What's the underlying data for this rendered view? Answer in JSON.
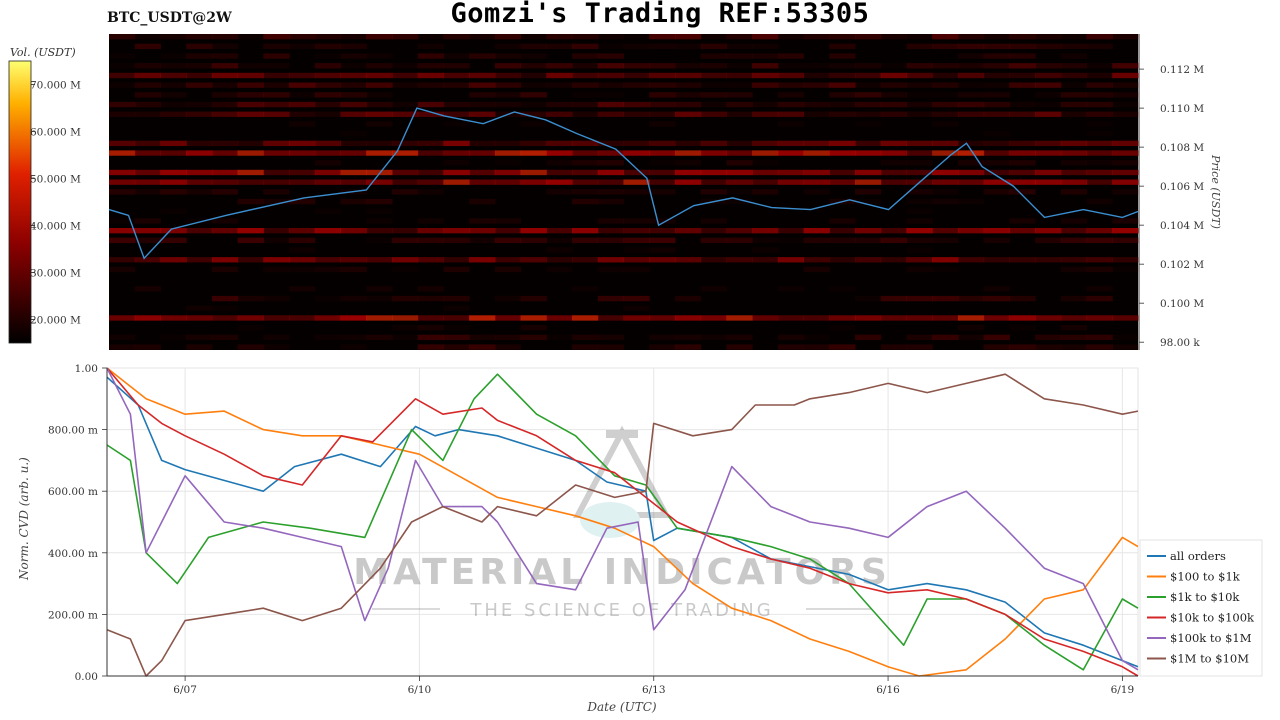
{
  "header": {
    "pair": "BTC_USDT@2W",
    "title": "Gomzi's Trading REF:53305"
  },
  "heatmap": {
    "colorbar_label": "Vol. (USDT)",
    "colorbar_ticks": [
      "70.000 M",
      "60.000 M",
      "50.000 M",
      "40.000 M",
      "30.000 M",
      "20.000 M"
    ],
    "y_axis_label": "Price (USDT)",
    "price_ticks": [
      "0.112 M",
      "0.110 M",
      "0.108 M",
      "0.106 M",
      "0.104 M",
      "0.102 M",
      "0.100 M",
      "98.00 k"
    ],
    "price_line_color": "#3a8fd1"
  },
  "watermark": {
    "line1": "MATERIAL INDICATORS",
    "line2": "THE SCIENCE OF TRADING"
  },
  "chart_data": [
    {
      "type": "heatmap",
      "series": [
        {
          "name": "",
          "x": [
            6.0,
            6.25,
            6.45,
            6.8,
            7.5,
            8.5,
            9.3,
            9.7,
            9.95,
            10.3,
            10.8,
            11.2,
            11.6,
            12.0,
            12.5,
            12.9,
            13.05,
            13.5,
            14.0,
            14.5,
            15.0,
            15.5,
            16.0,
            16.4,
            16.8,
            17.0,
            17.2,
            17.6,
            18.0,
            18.5,
            19.0,
            19.2
          ],
          "y": [
            104.8,
            104.5,
            102.3,
            103.8,
            104.5,
            105.4,
            105.8,
            107.8,
            110.0,
            109.6,
            109.2,
            109.8,
            109.4,
            108.7,
            107.9,
            106.4,
            104.0,
            105.0,
            105.4,
            104.9,
            104.8,
            105.3,
            104.8,
            106.2,
            107.6,
            108.2,
            107.0,
            106.0,
            104.4,
            104.8,
            104.4,
            104.7
          ]
        }
      ],
      "ylim": [
        97.6,
        113.8
      ],
      "xlim": [
        6.0,
        19.2
      ],
      "ylabel": "Price (USDT)",
      "colorbar_range": [
        15,
        75
      ]
    },
    {
      "type": "line",
      "xlabel": "Date (UTC)",
      "ylabel": "Norm. CVD (arb. u.)",
      "x_ticks": [
        "6/07",
        "6/10",
        "6/13",
        "6/16",
        "6/19"
      ],
      "y_ticks": [
        "0.00",
        "200.00 m",
        "400.00 m",
        "600.00 m",
        "800.00 m",
        "1.00"
      ],
      "xlim": [
        6.0,
        19.2
      ],
      "ylim": [
        0,
        1
      ],
      "grid": true,
      "legend": "right",
      "series": [
        {
          "name": "all orders",
          "color": "#1f77b4",
          "x": [
            6.0,
            6.4,
            6.7,
            7.0,
            8.0,
            8.4,
            9.0,
            9.5,
            9.95,
            10.2,
            10.5,
            11.0,
            11.5,
            12.0,
            12.4,
            12.9,
            13.0,
            13.3,
            14.0,
            14.5,
            15.5,
            16.0,
            16.5,
            17.0,
            17.5,
            18.0,
            18.5,
            19.0,
            19.2
          ],
          "y": [
            0.97,
            0.88,
            0.7,
            0.67,
            0.6,
            0.68,
            0.72,
            0.68,
            0.81,
            0.78,
            0.8,
            0.78,
            0.74,
            0.7,
            0.63,
            0.6,
            0.44,
            0.48,
            0.45,
            0.38,
            0.33,
            0.28,
            0.3,
            0.28,
            0.24,
            0.14,
            0.1,
            0.05,
            0.03
          ]
        },
        {
          "name": "$100 to $1k",
          "color": "#ff7f0e",
          "x": [
            6.0,
            6.5,
            7.0,
            7.5,
            8.0,
            8.5,
            9.0,
            9.5,
            10.0,
            10.5,
            11.0,
            11.5,
            12.0,
            12.5,
            13.0,
            13.5,
            14.0,
            14.5,
            15.0,
            15.5,
            16.0,
            16.4,
            17.0,
            17.5,
            18.0,
            18.5,
            19.0,
            19.2
          ],
          "y": [
            1.0,
            0.9,
            0.85,
            0.86,
            0.8,
            0.78,
            0.78,
            0.75,
            0.72,
            0.65,
            0.58,
            0.55,
            0.52,
            0.48,
            0.42,
            0.3,
            0.22,
            0.18,
            0.12,
            0.08,
            0.03,
            0.0,
            0.02,
            0.12,
            0.25,
            0.28,
            0.45,
            0.42
          ]
        },
        {
          "name": "$1k to $10k",
          "color": "#2ca02c",
          "x": [
            6.0,
            6.3,
            6.5,
            6.9,
            7.3,
            8.0,
            8.6,
            9.3,
            9.9,
            10.3,
            10.7,
            11.0,
            11.5,
            12.0,
            12.5,
            12.9,
            13.3,
            14.0,
            14.5,
            15.0,
            15.5,
            16.2,
            16.5,
            17.0,
            17.5,
            18.0,
            18.5,
            19.0,
            19.2
          ],
          "y": [
            0.75,
            0.7,
            0.4,
            0.3,
            0.45,
            0.5,
            0.48,
            0.45,
            0.8,
            0.7,
            0.9,
            0.98,
            0.85,
            0.78,
            0.65,
            0.62,
            0.48,
            0.45,
            0.42,
            0.38,
            0.3,
            0.1,
            0.25,
            0.25,
            0.2,
            0.1,
            0.02,
            0.25,
            0.22
          ]
        },
        {
          "name": "$10k to $100k",
          "color": "#d62728",
          "x": [
            6.0,
            6.4,
            6.7,
            7.0,
            7.5,
            8.0,
            8.5,
            9.0,
            9.4,
            9.95,
            10.3,
            10.8,
            11.0,
            11.5,
            12.0,
            12.5,
            12.9,
            13.3,
            14.0,
            14.5,
            15.0,
            15.5,
            16.0,
            16.5,
            17.0,
            17.5,
            18.0,
            18.5,
            19.0,
            19.2
          ],
          "y": [
            1.0,
            0.88,
            0.82,
            0.78,
            0.72,
            0.65,
            0.62,
            0.78,
            0.76,
            0.9,
            0.85,
            0.87,
            0.83,
            0.78,
            0.7,
            0.66,
            0.58,
            0.5,
            0.42,
            0.38,
            0.35,
            0.3,
            0.27,
            0.28,
            0.25,
            0.2,
            0.12,
            0.08,
            0.03,
            0.0
          ]
        },
        {
          "name": "$100k to $1M",
          "color": "#9467bd",
          "x": [
            6.0,
            6.3,
            6.5,
            6.8,
            7.0,
            7.5,
            8.0,
            8.5,
            9.0,
            9.3,
            9.6,
            9.95,
            10.3,
            10.8,
            11.0,
            11.5,
            12.0,
            12.4,
            12.8,
            13.0,
            13.4,
            14.0,
            14.5,
            15.0,
            15.5,
            16.0,
            16.5,
            17.0,
            17.5,
            18.0,
            18.5,
            19.0,
            19.2
          ],
          "y": [
            1.0,
            0.85,
            0.4,
            0.55,
            0.65,
            0.5,
            0.48,
            0.45,
            0.42,
            0.18,
            0.35,
            0.7,
            0.55,
            0.55,
            0.5,
            0.3,
            0.28,
            0.48,
            0.5,
            0.15,
            0.28,
            0.68,
            0.55,
            0.5,
            0.48,
            0.45,
            0.55,
            0.6,
            0.48,
            0.35,
            0.3,
            0.05,
            0.02
          ]
        },
        {
          "name": "$1M to $10M",
          "color": "#8c564b",
          "x": [
            6.0,
            6.3,
            6.5,
            6.7,
            7.0,
            7.5,
            8.0,
            8.5,
            9.0,
            9.5,
            9.9,
            10.3,
            10.8,
            11.0,
            11.5,
            12.0,
            12.5,
            12.9,
            13.0,
            13.5,
            14.0,
            14.3,
            14.8,
            15.0,
            15.5,
            16.0,
            16.5,
            17.0,
            17.5,
            18.0,
            18.5,
            19.0,
            19.2
          ],
          "y": [
            0.15,
            0.12,
            0.0,
            0.05,
            0.18,
            0.2,
            0.22,
            0.18,
            0.22,
            0.35,
            0.5,
            0.55,
            0.5,
            0.55,
            0.52,
            0.62,
            0.58,
            0.6,
            0.82,
            0.78,
            0.8,
            0.88,
            0.88,
            0.9,
            0.92,
            0.95,
            0.92,
            0.95,
            0.98,
            0.9,
            0.88,
            0.85,
            0.86
          ]
        }
      ]
    }
  ]
}
